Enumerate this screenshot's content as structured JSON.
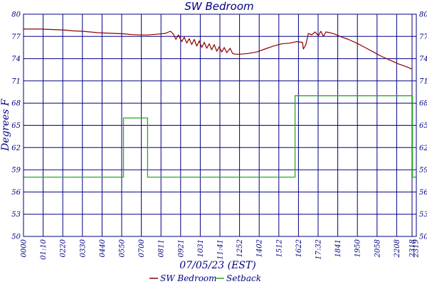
{
  "chart_data": {
    "type": "line",
    "title": "SW Bedroom",
    "xlabel": "07/05/23 (EST)",
    "ylabel": "Degrees F",
    "x_tick_labels": [
      "0000",
      "01:10",
      "0220",
      "0330",
      "0440",
      "0550",
      "0700",
      "0811",
      "0921",
      "1031",
      "11:41",
      "1252",
      "1402",
      "1512",
      "1622",
      "17:32",
      "1841",
      "1950",
      "2058",
      "2208",
      "2318",
      "2319"
    ],
    "y_tick_labels": [
      "50",
      "53",
      "56",
      "59",
      "62",
      "65",
      "68",
      "71",
      "74",
      "77",
      "80"
    ],
    "grid": true,
    "legend_position": "bottom",
    "series": [
      {
        "name": "SW Bedroom",
        "color": "#8b0000",
        "points": [
          [
            0,
            78.0
          ],
          [
            0.5,
            78.0
          ],
          [
            1.0,
            78.0
          ],
          [
            1.5,
            77.95
          ],
          [
            2.0,
            77.9
          ],
          [
            2.5,
            77.85
          ],
          [
            3.0,
            77.75
          ],
          [
            3.5,
            77.7
          ],
          [
            4.0,
            77.6
          ],
          [
            4.5,
            77.5
          ],
          [
            5.0,
            77.45
          ],
          [
            5.5,
            77.4
          ],
          [
            6.0,
            77.35
          ],
          [
            6.5,
            77.25
          ],
          [
            7.0,
            77.2
          ],
          [
            7.5,
            77.2
          ],
          [
            8.0,
            77.3
          ],
          [
            8.5,
            77.4
          ],
          [
            8.83,
            77.7
          ],
          [
            9.0,
            77.3
          ],
          [
            9.15,
            76.6
          ],
          [
            9.3,
            77.2
          ],
          [
            9.5,
            76.3
          ],
          [
            9.65,
            76.9
          ],
          [
            9.8,
            76.1
          ],
          [
            9.95,
            76.7
          ],
          [
            10.1,
            75.9
          ],
          [
            10.25,
            76.6
          ],
          [
            10.4,
            75.7
          ],
          [
            10.55,
            76.4
          ],
          [
            10.7,
            75.5
          ],
          [
            10.85,
            76.2
          ],
          [
            11.0,
            75.4
          ],
          [
            11.15,
            76.0
          ],
          [
            11.3,
            75.2
          ],
          [
            11.45,
            75.9
          ],
          [
            11.6,
            75.0
          ],
          [
            11.75,
            75.6
          ],
          [
            11.9,
            74.9
          ],
          [
            12.05,
            75.5
          ],
          [
            12.2,
            74.8
          ],
          [
            12.4,
            75.4
          ],
          [
            12.55,
            74.7
          ],
          [
            12.7,
            74.6
          ],
          [
            13.0,
            74.6
          ],
          [
            13.5,
            74.7
          ],
          [
            14.0,
            74.9
          ],
          [
            14.5,
            75.3
          ],
          [
            15.0,
            75.7
          ],
          [
            15.5,
            76.0
          ],
          [
            16.0,
            76.1
          ],
          [
            16.4,
            76.3
          ],
          [
            16.75,
            76.2
          ],
          [
            16.8,
            75.3
          ],
          [
            16.95,
            75.9
          ],
          [
            17.1,
            77.4
          ],
          [
            17.3,
            77.2
          ],
          [
            17.5,
            77.6
          ],
          [
            17.7,
            77.1
          ],
          [
            17.85,
            77.7
          ],
          [
            18.0,
            77.0
          ],
          [
            18.15,
            77.6
          ],
          [
            18.4,
            77.5
          ],
          [
            18.7,
            77.3
          ],
          [
            19.0,
            77.0
          ],
          [
            19.5,
            76.6
          ],
          [
            20.0,
            76.1
          ],
          [
            20.5,
            75.5
          ],
          [
            21.0,
            74.9
          ],
          [
            21.5,
            74.3
          ],
          [
            22.0,
            73.8
          ],
          [
            22.5,
            73.3
          ],
          [
            23.0,
            72.9
          ],
          [
            23.3,
            72.6
          ]
        ]
      },
      {
        "name": "Setback",
        "color": "#22aa22",
        "points": [
          [
            0,
            58
          ],
          [
            6.0,
            58
          ],
          [
            6.0,
            66
          ],
          [
            7.45,
            66
          ],
          [
            7.45,
            58
          ],
          [
            16.3,
            58
          ],
          [
            16.3,
            69
          ],
          [
            23.35,
            69
          ],
          [
            23.35,
            58
          ],
          [
            23.58,
            58
          ]
        ]
      }
    ],
    "x_range": [
      0,
      23.58
    ],
    "y_range": [
      50,
      80
    ]
  }
}
